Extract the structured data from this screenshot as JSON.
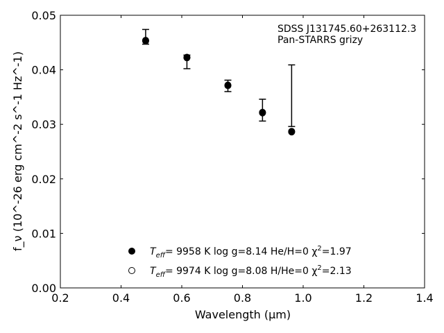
{
  "chart_data": {
    "type": "scatter",
    "title": "",
    "xlabel": "Wavelength (μm)",
    "ylabel": "f_ν (10^-26 erg cm^-2 s^-1 Hz^-1)",
    "xlim": [
      0.2,
      1.4
    ],
    "ylim": [
      0.0,
      0.05
    ],
    "x_ticks": [
      0.2,
      0.4,
      0.6,
      0.8,
      1.0,
      1.2,
      1.4
    ],
    "x_tick_labels": [
      "0.2",
      "0.4",
      "0.6",
      "0.8",
      "1.0",
      "1.2",
      "1.4"
    ],
    "y_ticks": [
      0.0,
      0.01,
      0.02,
      0.03,
      0.04,
      0.05
    ],
    "y_tick_labels": [
      "0.00",
      "0.01",
      "0.02",
      "0.03",
      "0.04",
      "0.05"
    ],
    "grid": false,
    "annotation": {
      "line1": "SDSS J131745.60+263112.3",
      "line2": "Pan-STARRS grizy"
    },
    "observed": {
      "x": [
        0.481,
        0.617,
        0.752,
        0.866,
        0.962
      ],
      "y": [
        0.0458,
        0.0415,
        0.0371,
        0.0326,
        0.0352
      ],
      "yerr_low": [
        0.0011,
        0.0013,
        0.0011,
        0.002,
        0.0056
      ],
      "yerr_high": [
        0.0016,
        0.0012,
        0.001,
        0.002,
        0.0057
      ]
    },
    "series": [
      {
        "marker": "filled",
        "label": {
          "pre": "T",
          "sub": "eff",
          "mid": "=  9958 K  log g=8.14  He/H=0  χ",
          "sup": "2",
          "post": "=1.97"
        },
        "x": [
          0.481,
          0.617,
          0.752,
          0.866,
          0.962
        ],
        "y": [
          0.0454,
          0.0423,
          0.0372,
          0.0322,
          0.0287
        ]
      },
      {
        "marker": "open",
        "label": {
          "pre": "T",
          "sub": "eff",
          "mid": "=  9974 K  log g=8.08  H/He=0  χ",
          "sup": "2",
          "post": "=2.13"
        },
        "x": [
          0.481,
          0.617,
          0.752,
          0.866,
          0.962
        ],
        "y": [
          0.0453,
          0.0422,
          0.0371,
          0.0321,
          0.0286
        ]
      }
    ],
    "legend_position": "lower-center"
  }
}
